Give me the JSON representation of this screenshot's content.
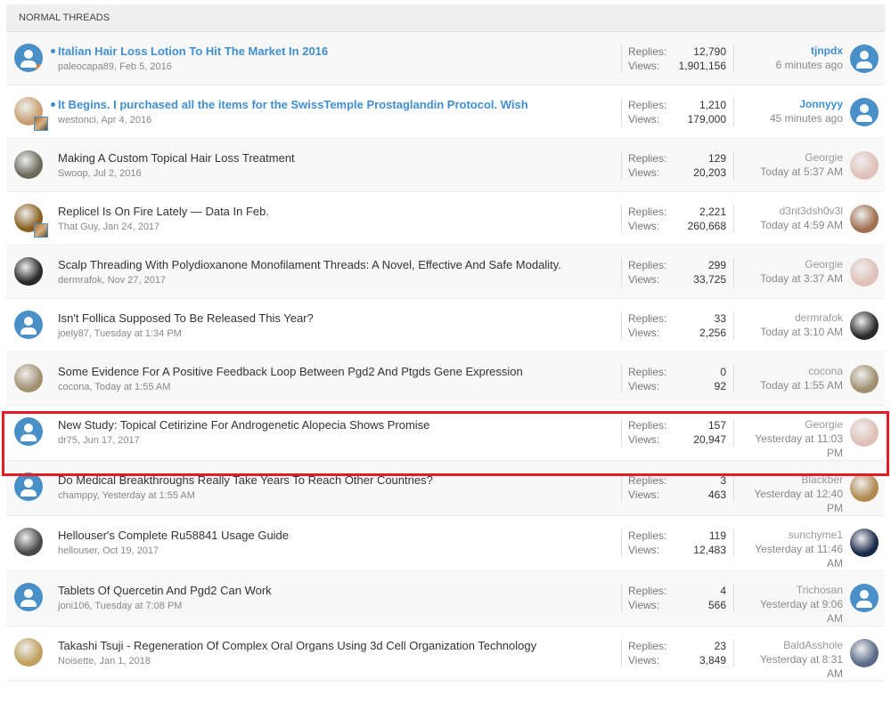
{
  "section_title": "NORMAL THREADS",
  "labels": {
    "replies": "Replies:",
    "views": "Views:"
  },
  "colors": {
    "link": "#3f8fd0",
    "highlight_border": "#e31b23",
    "avatar_default": "#4a90c8"
  },
  "threads": [
    {
      "title": "Italian Hair Loss Lotion To Hit The Market In 2016",
      "unread": true,
      "author": "paleocapa89",
      "date": "Feb 5, 2016",
      "replies": "12,790",
      "views": "1,901,156",
      "last_user": "tjnpdx",
      "last_time": "6 minutes ago",
      "avatar": "default",
      "last_avatar": "default",
      "has_mini": true
    },
    {
      "title": "It Begins. I purchased all the items for the SwissTemple Prostaglandin Protocol. Wish",
      "unread": true,
      "author": "westonci",
      "date": "Apr 4, 2016",
      "replies": "1,210",
      "views": "179,000",
      "last_user": "Jonnyyy",
      "last_time": "45 minutes ago",
      "avatar": "#c8a070",
      "last_avatar": "default",
      "has_mini": true
    },
    {
      "title": "Making A Custom Topical Hair Loss Treatment",
      "author": "Swoop",
      "date": "Jul 2, 2016",
      "replies": "129",
      "views": "20,203",
      "last_user": "Georgie",
      "last_time": "Today at 5:37 AM",
      "avatar": "#6a6a5a",
      "last_avatar": "#e0c0b8"
    },
    {
      "title": "Replicel Is On Fire Lately — Data In Feb.",
      "author": "That Guy",
      "date": "Jan 24, 2017",
      "replies": "2,221",
      "views": "260,668",
      "last_user": "d3nt3dsh0v3l",
      "last_time": "Today at 4:59 AM",
      "avatar": "#8a6020",
      "last_avatar": "#a07050",
      "has_mini": true
    },
    {
      "title": "Scalp Threading With Polydioxanone Monofilament Threads: A Novel, Effective And Safe Modality.",
      "author": "dermrafok",
      "date": "Nov 27, 2017",
      "replies": "299",
      "views": "33,725",
      "last_user": "Georgie",
      "last_time": "Today at 3:37 AM",
      "avatar": "#2a2a2a",
      "last_avatar": "#e0c0b8"
    },
    {
      "title": "Isn't Follica Supposed To Be Released This Year?",
      "author": "joely87",
      "date": "Tuesday at 1:34 PM",
      "replies": "33",
      "views": "2,256",
      "last_user": "dermrafok",
      "last_time": "Today at 3:10 AM",
      "avatar": "default",
      "last_avatar": "#2a2a2a"
    },
    {
      "title": "Some Evidence For A Positive Feedback Loop Between Pgd2 And Ptgds Gene Expression",
      "author": "cocona",
      "date": "Today at 1:55 AM",
      "replies": "0",
      "views": "92",
      "last_user": "cocona",
      "last_time": "Today at 1:55 AM",
      "avatar": "#a09070",
      "last_avatar": "#a09070"
    },
    {
      "title": "New Study: Topical Cetirizine For Androgenetic Alopecia Shows Promise",
      "author": "dr75",
      "date": "Jun 17, 2017",
      "replies": "157",
      "views": "20,947",
      "last_user": "Georgie",
      "last_time": "Yesterday at 11:03 PM",
      "avatar": "default",
      "last_avatar": "#e0c0b8"
    },
    {
      "title": "Do Medical Breakthroughs Really Take Years To Reach Other Countries?",
      "author": "champpy",
      "date": "Yesterday at 1:55 AM",
      "replies": "3",
      "views": "463",
      "last_user": "Blackber",
      "last_time": "Yesterday at 12:40 PM",
      "avatar": "default",
      "last_avatar": "#b08a50"
    },
    {
      "title": "Hellouser's Complete Ru58841 Usage Guide",
      "author": "hellouser",
      "date": "Oct 19, 2017",
      "replies": "119",
      "views": "12,483",
      "last_user": "sunchyme1",
      "last_time": "Yesterday at 11:46 AM",
      "avatar": "#4a4a4a",
      "last_avatar": "#1a2a4a"
    },
    {
      "title": "Tablets Of Quercetin And Pgd2 Can Work",
      "author": "joni106",
      "date": "Tuesday at 7:08 PM",
      "replies": "4",
      "views": "566",
      "last_user": "Trichosan",
      "last_time": "Yesterday at 9:06 AM",
      "avatar": "default",
      "last_avatar": "default"
    },
    {
      "title": "Takashi Tsuji - Regeneration Of Complex Oral Organs Using 3d Cell Organization Technology",
      "author": "Noisette",
      "date": "Jan 1, 2018",
      "replies": "23",
      "views": "3,849",
      "last_user": "BaldAsshole",
      "last_time": "Yesterday at 8:31 AM",
      "avatar": "#c0a060",
      "last_avatar": "#5a6a8a"
    }
  ]
}
